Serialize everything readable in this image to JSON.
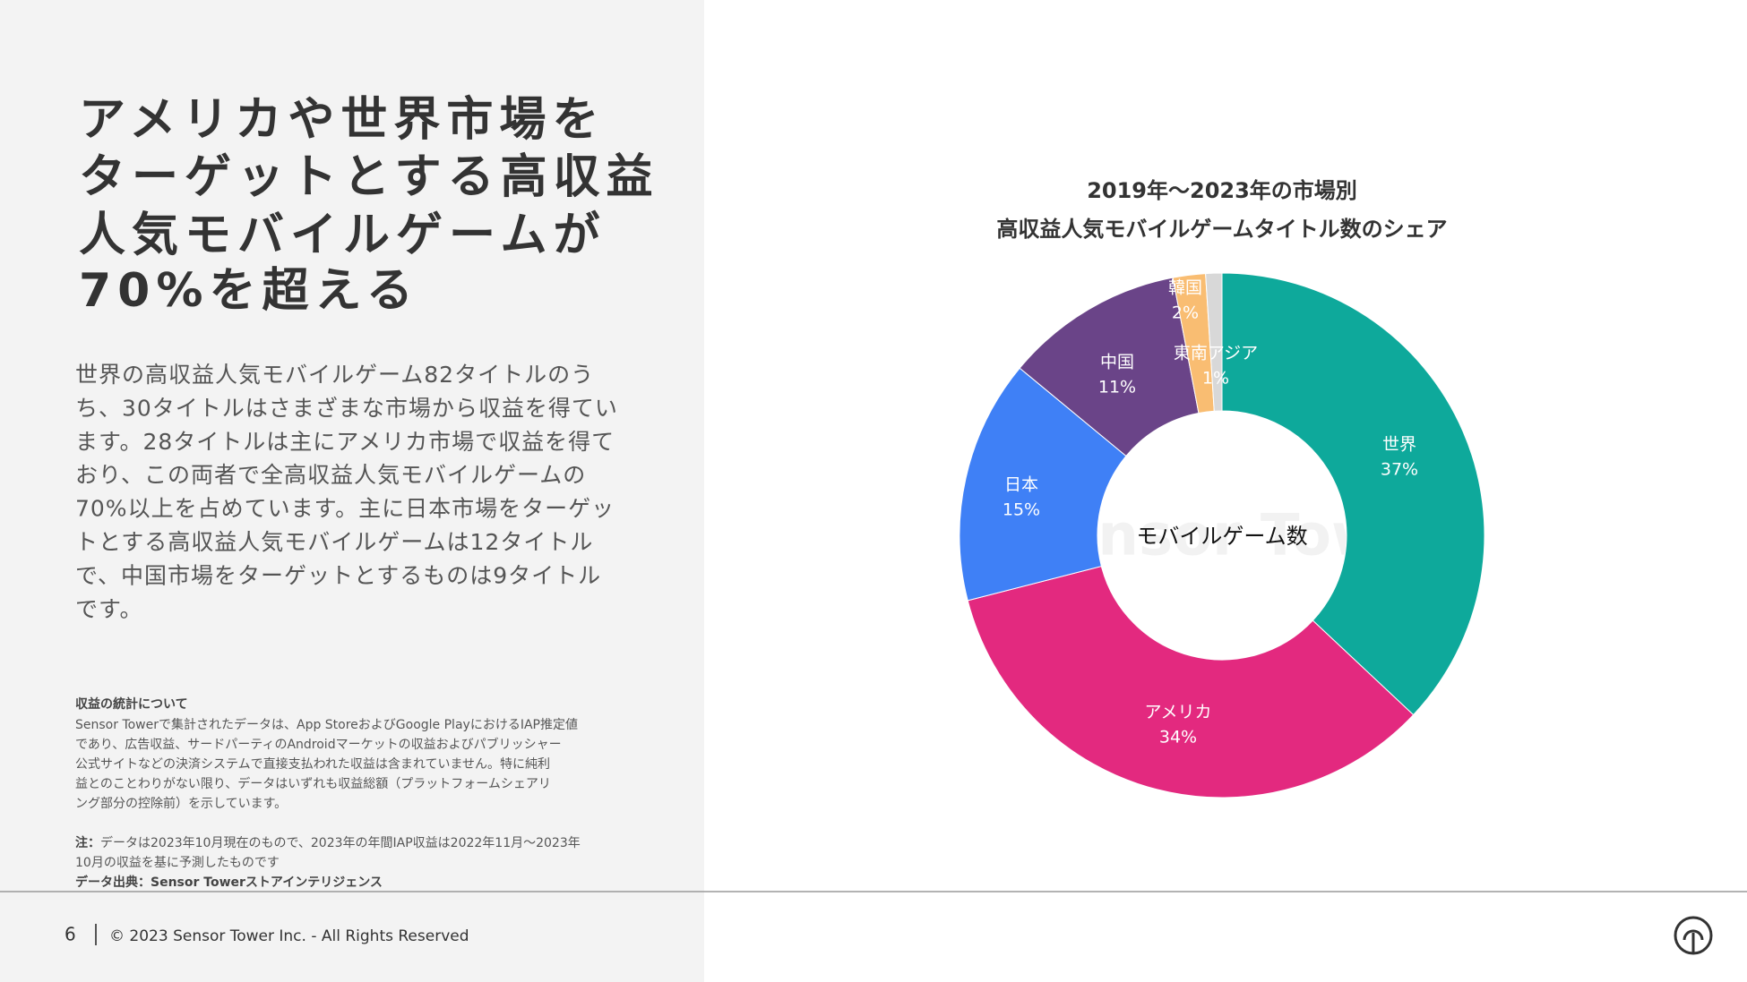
{
  "header": {
    "title_lines": [
      "アメリカや世界市場を",
      "ターゲットとする高収益",
      "人気モバイルゲームが",
      "70%を超える"
    ]
  },
  "body": {
    "lines": [
      "世界の高収益人気モバイルゲーム82タイトルのう",
      "ち、30タイトルはさまざまな市場から収益を得てい",
      "ます。28タイトルは主にアメリカ市場で収益を得て",
      "おり、この両者で全高収益人気モバイルゲームの",
      "70%以上を占めています。主に日本市場をターゲッ",
      "トとする高収益人気モバイルゲームは12タイトル",
      "で、中国市場をターゲットとするものは9タイトル",
      "です。"
    ]
  },
  "notes": {
    "heading": "収益の統計について",
    "lines": [
      "Sensor Towerで集計されたデータは、App StoreおよびGoogle PlayにおけるIAP推定値",
      "であり、広告収益、サードパーティのAndroidマーケットの収益およびパブリッシャー",
      "公式サイトなどの決済システムで直接支払われた収益は含まれていません。特に純利",
      "益とのことわりがない限り、データはいずれも収益総額（プラットフォームシェアリ",
      "ング部分の控除前）を示しています。"
    ],
    "note_label": "注：",
    "note_lines": [
      "データは2023年10月現在のもので、2023年の年間IAP収益は2022年11月～2023年",
      "10月の収益を基に予測したものです"
    ],
    "source": "データ出典：Sensor Towerストアインテリジェンス"
  },
  "footer": {
    "page": "6",
    "copyright": "© 2023 Sensor Tower Inc. - All Rights Reserved"
  },
  "chart_data": {
    "type": "donut",
    "title_lines": [
      "2019年～2023年の市場別",
      "高収益人気モバイルゲームタイトル数のシェア"
    ],
    "center_label": "モバイルゲーム数",
    "watermark": "Sensor Tower",
    "categories": [
      "世界",
      "アメリカ",
      "日本",
      "中国",
      "韓国",
      "東南アジア"
    ],
    "values": [
      37,
      34,
      15,
      11,
      2,
      1
    ],
    "value_labels": [
      "37%",
      "34%",
      "15%",
      "11%",
      "2%",
      "1%"
    ],
    "colors": [
      "#0ea99b",
      "#e3297f",
      "#3f80f6",
      "#6a4488",
      "#f9bd72",
      "#d8d8d8"
    ]
  }
}
